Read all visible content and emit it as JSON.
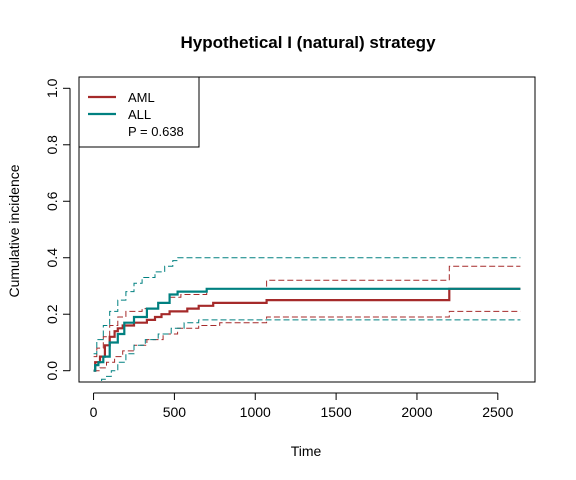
{
  "chart_data": {
    "type": "line",
    "title": "Hypothetical I (natural) strategy",
    "xlabel": "Time",
    "ylabel": "Cumulative incidence",
    "xlim": [
      -90,
      2730
    ],
    "ylim": [
      -0.04,
      1.04
    ],
    "xticks": [
      0,
      500,
      1000,
      1500,
      2000,
      2500
    ],
    "xtick_labels": [
      "0",
      "500",
      "1000",
      "1500",
      "2000",
      "2500"
    ],
    "yticks": [
      0,
      0.2,
      0.4,
      0.6,
      0.8,
      1.0
    ],
    "ytick_labels": [
      "0.0",
      "0.2",
      "0.4",
      "0.6",
      "0.8",
      "1.0"
    ],
    "legend": {
      "position": "top-left",
      "entries": [
        "AML",
        "ALL"
      ],
      "annotation": "P = 0.638"
    },
    "series": [
      {
        "name": "AML",
        "color": "#A52A2A",
        "style": "solid",
        "points": [
          [
            0,
            0
          ],
          [
            10,
            0.03
          ],
          [
            40,
            0.05
          ],
          [
            70,
            0.09
          ],
          [
            100,
            0.12
          ],
          [
            130,
            0.14
          ],
          [
            150,
            0.15
          ],
          [
            180,
            0.16
          ],
          [
            250,
            0.17
          ],
          [
            330,
            0.18
          ],
          [
            380,
            0.19
          ],
          [
            420,
            0.2
          ],
          [
            470,
            0.21
          ],
          [
            580,
            0.22
          ],
          [
            650,
            0.23
          ],
          [
            740,
            0.24
          ],
          [
            1070,
            0.25
          ],
          [
            2200,
            0.29
          ],
          [
            2640,
            0.29
          ]
        ]
      },
      {
        "name": "AML lower CI",
        "color": "#A52A2A",
        "style": "dashed",
        "points": [
          [
            0,
            0
          ],
          [
            40,
            0.01
          ],
          [
            80,
            0.03
          ],
          [
            130,
            0.05
          ],
          [
            180,
            0.07
          ],
          [
            250,
            0.09
          ],
          [
            330,
            0.11
          ],
          [
            430,
            0.13
          ],
          [
            520,
            0.15
          ],
          [
            650,
            0.16
          ],
          [
            780,
            0.17
          ],
          [
            1070,
            0.19
          ],
          [
            2200,
            0.21
          ],
          [
            2640,
            0.21
          ]
        ]
      },
      {
        "name": "AML upper CI",
        "color": "#A52A2A",
        "style": "dashed",
        "points": [
          [
            0,
            0.05
          ],
          [
            20,
            0.08
          ],
          [
            60,
            0.12
          ],
          [
            100,
            0.16
          ],
          [
            150,
            0.19
          ],
          [
            200,
            0.21
          ],
          [
            300,
            0.22
          ],
          [
            400,
            0.24
          ],
          [
            470,
            0.26
          ],
          [
            540,
            0.27
          ],
          [
            700,
            0.29
          ],
          [
            1070,
            0.32
          ],
          [
            2200,
            0.37
          ],
          [
            2640,
            0.37
          ]
        ]
      },
      {
        "name": "ALL",
        "color": "#008080",
        "style": "solid",
        "points": [
          [
            0,
            0
          ],
          [
            10,
            0.02
          ],
          [
            30,
            0.03
          ],
          [
            60,
            0.05
          ],
          [
            100,
            0.1
          ],
          [
            150,
            0.13
          ],
          [
            190,
            0.17
          ],
          [
            250,
            0.19
          ],
          [
            330,
            0.22
          ],
          [
            400,
            0.24
          ],
          [
            470,
            0.27
          ],
          [
            520,
            0.28
          ],
          [
            700,
            0.29
          ],
          [
            2640,
            0.29
          ]
        ]
      },
      {
        "name": "ALL lower CI",
        "color": "#008080",
        "style": "dashed",
        "points": [
          [
            0,
            -0.04
          ],
          [
            50,
            -0.03
          ],
          [
            80,
            -0.02
          ],
          [
            110,
            0
          ],
          [
            150,
            0.03
          ],
          [
            200,
            0.06
          ],
          [
            250,
            0.09
          ],
          [
            320,
            0.11
          ],
          [
            400,
            0.13
          ],
          [
            480,
            0.15
          ],
          [
            560,
            0.17
          ],
          [
            650,
            0.18
          ],
          [
            2640,
            0.18
          ]
        ]
      },
      {
        "name": "ALL upper CI",
        "color": "#008080",
        "style": "dashed",
        "points": [
          [
            0,
            0.06
          ],
          [
            20,
            0.11
          ],
          [
            60,
            0.16
          ],
          [
            100,
            0.21
          ],
          [
            150,
            0.25
          ],
          [
            200,
            0.28
          ],
          [
            250,
            0.31
          ],
          [
            300,
            0.33
          ],
          [
            380,
            0.35
          ],
          [
            440,
            0.37
          ],
          [
            490,
            0.39
          ],
          [
            520,
            0.4
          ],
          [
            2640,
            0.4
          ]
        ]
      }
    ]
  }
}
